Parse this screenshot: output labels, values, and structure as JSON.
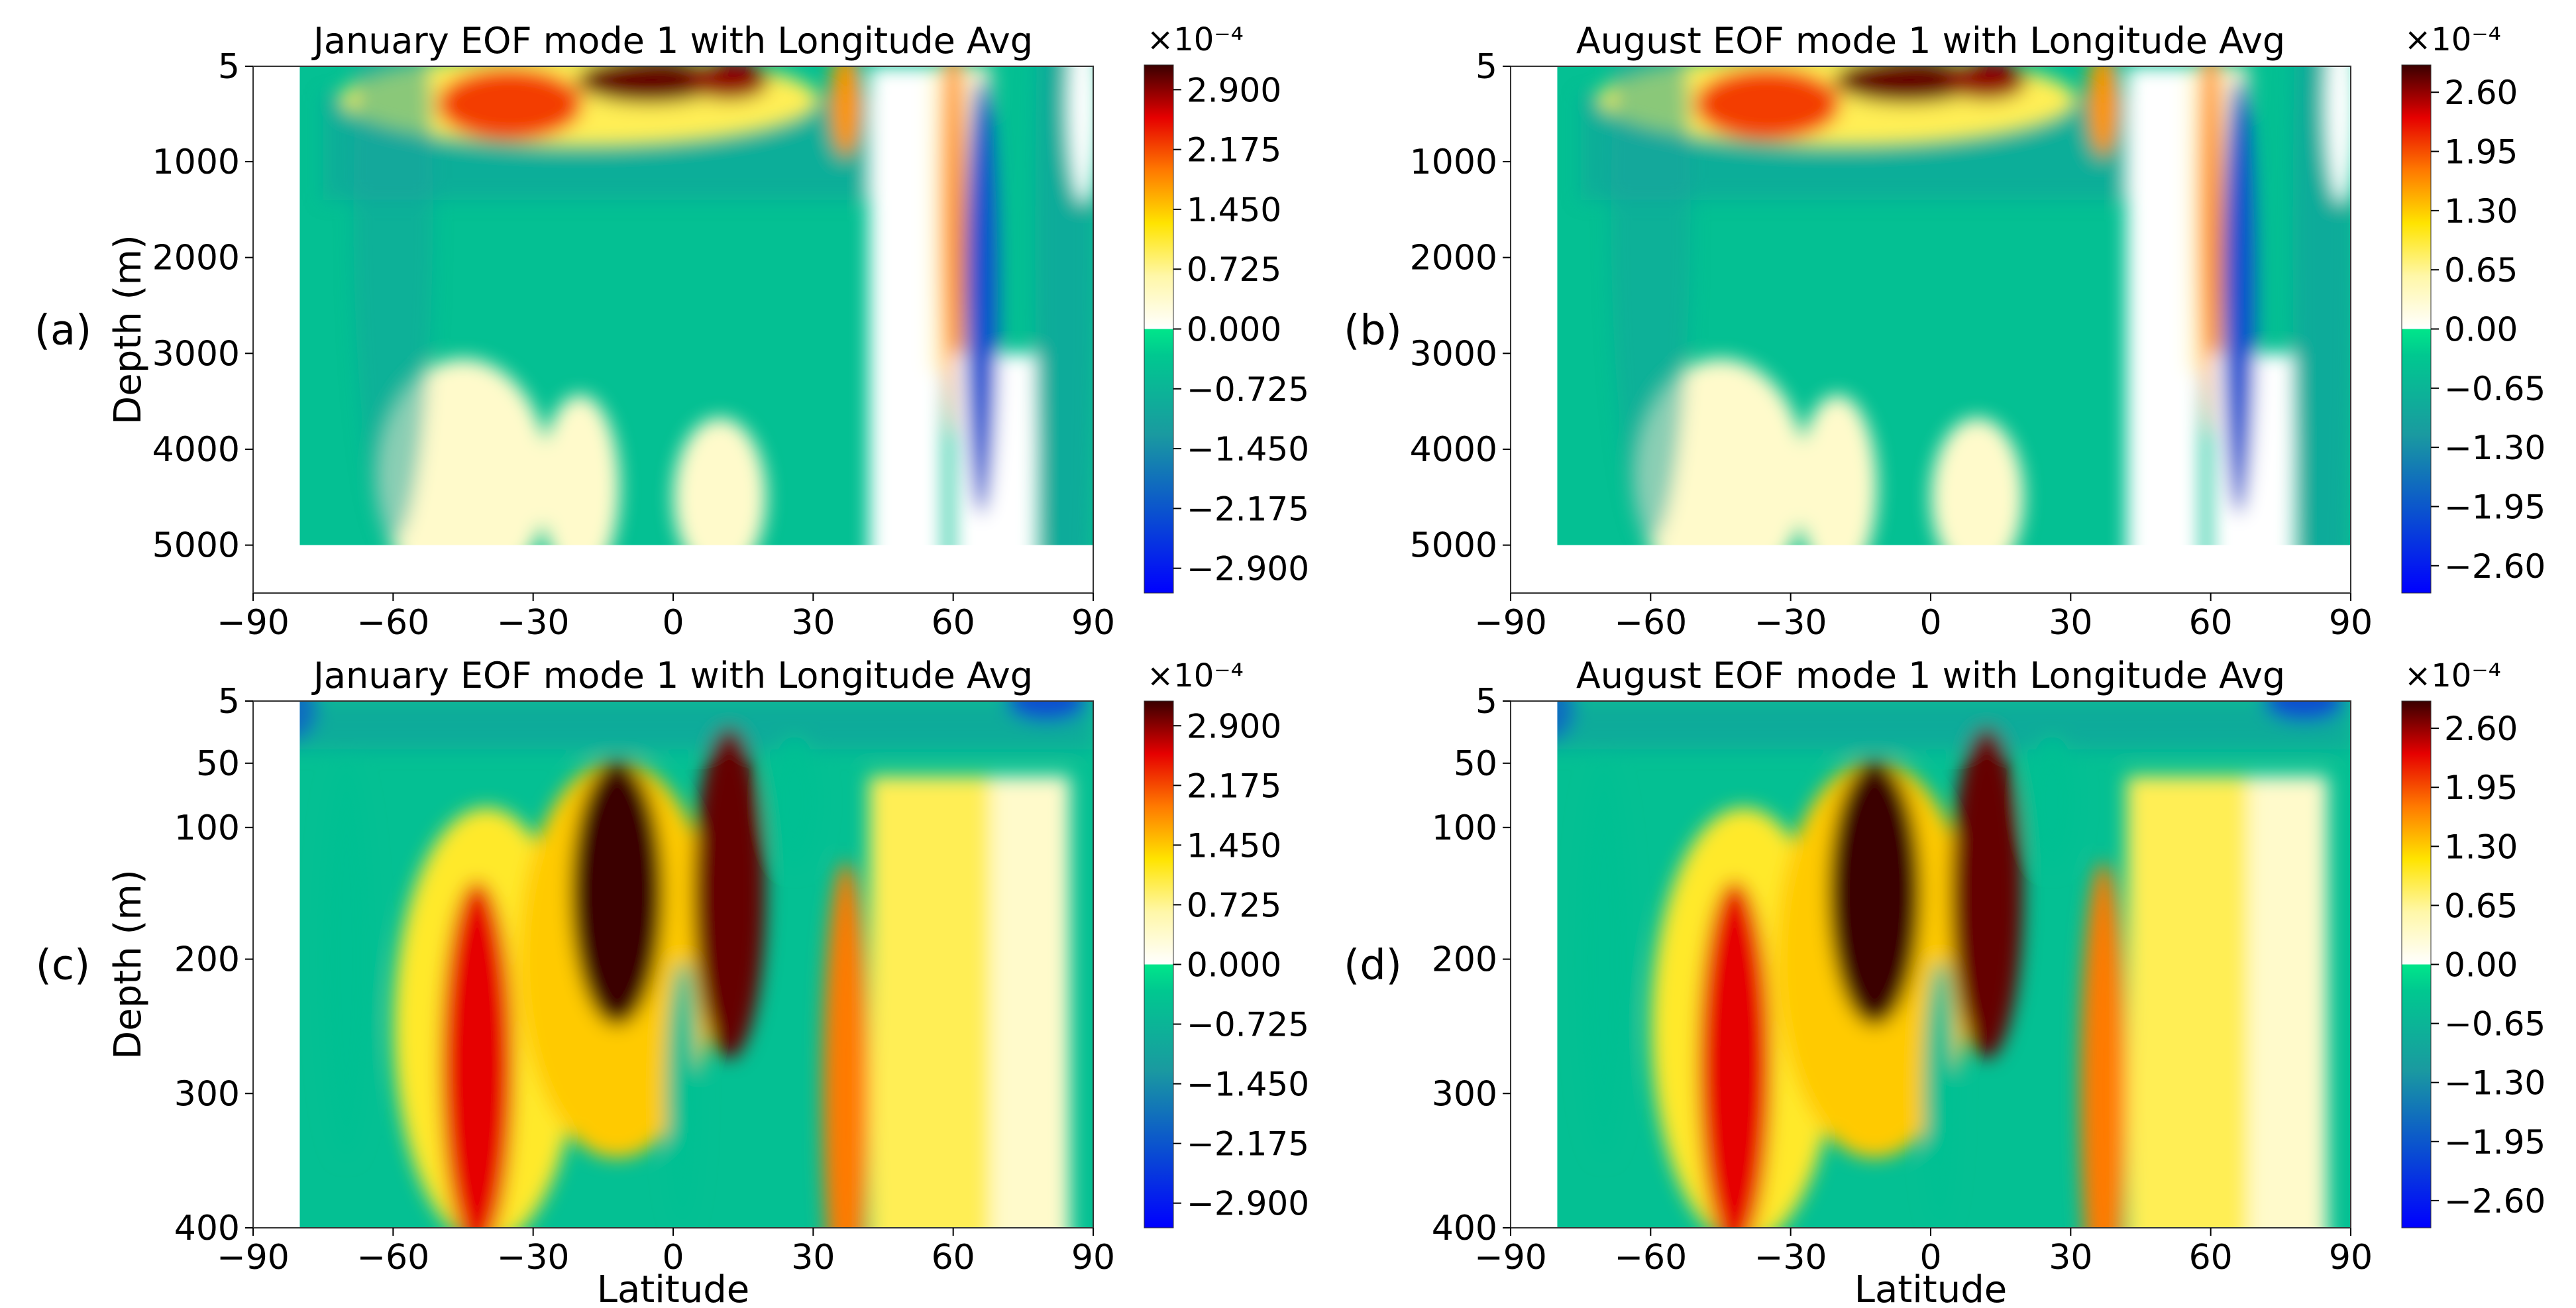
{
  "figure": {
    "panels": [
      {
        "id": "a",
        "panel_label": "(a)",
        "title": "January EOF mode 1 with Longitude Avg",
        "ylabel": "Depth (m)",
        "xlabel": "",
        "x_ticks": [
          -90,
          -60,
          -30,
          0,
          30,
          60,
          90
        ],
        "x_tick_labels": [
          "−90",
          "−60",
          "−30",
          "0",
          "30",
          "60",
          "90"
        ],
        "y_ticks": [
          5,
          1000,
          2000,
          3000,
          4000,
          5000
        ],
        "y_tick_labels": [
          "5",
          "1000",
          "2000",
          "3000",
          "4000",
          "5000"
        ],
        "colorbar": {
          "exponent_label": "×10⁻⁴",
          "tick_labels": [
            "2.900",
            "2.175",
            "1.450",
            "0.725",
            "0.000",
            "−0.725",
            "−1.450",
            "−2.175",
            "−2.900"
          ]
        }
      },
      {
        "id": "b",
        "panel_label": "(b)",
        "title": "August EOF mode 1 with Longitude Avg",
        "ylabel": "",
        "xlabel": "",
        "x_ticks": [
          -90,
          -60,
          -30,
          0,
          30,
          60,
          90
        ],
        "x_tick_labels": [
          "−90",
          "−60",
          "−30",
          "0",
          "30",
          "60",
          "90"
        ],
        "y_ticks": [
          5,
          1000,
          2000,
          3000,
          4000,
          5000
        ],
        "y_tick_labels": [
          "5",
          "1000",
          "2000",
          "3000",
          "4000",
          "5000"
        ],
        "colorbar": {
          "exponent_label": "×10⁻⁴",
          "tick_labels": [
            "2.60",
            "1.95",
            "1.30",
            "0.65",
            "0.00",
            "−0.65",
            "−1.30",
            "−1.95",
            "−2.60"
          ]
        }
      },
      {
        "id": "c",
        "panel_label": "(c)",
        "title": "January EOF mode 1 with Longitude Avg",
        "ylabel": "Depth (m)",
        "xlabel": "Latitude",
        "x_ticks": [
          -90,
          -60,
          -30,
          0,
          30,
          60,
          90
        ],
        "x_tick_labels": [
          "−90",
          "−60",
          "−30",
          "0",
          "30",
          "60",
          "90"
        ],
        "y_ticks": [
          5,
          50,
          100,
          200,
          300,
          400
        ],
        "y_tick_labels": [
          "5",
          "50",
          "100",
          "200",
          "300",
          "400"
        ],
        "colorbar": {
          "exponent_label": "×10⁻⁴",
          "tick_labels": [
            "2.900",
            "2.175",
            "1.450",
            "0.725",
            "0.000",
            "−0.725",
            "−1.450",
            "−2.175",
            "−2.900"
          ]
        }
      },
      {
        "id": "d",
        "panel_label": "(d)",
        "title": "August EOF mode 1 with Longitude Avg",
        "ylabel": "",
        "xlabel": "Latitude",
        "x_ticks": [
          -90,
          -60,
          -30,
          0,
          30,
          60,
          90
        ],
        "x_tick_labels": [
          "−90",
          "−60",
          "−30",
          "0",
          "30",
          "60",
          "90"
        ],
        "y_ticks": [
          5,
          50,
          100,
          200,
          300,
          400
        ],
        "y_tick_labels": [
          "5",
          "50",
          "100",
          "200",
          "300",
          "400"
        ],
        "colorbar": {
          "exponent_label": "×10⁻⁴",
          "tick_labels": [
            "2.60",
            "1.95",
            "1.30",
            "0.65",
            "0.00",
            "−0.65",
            "−1.30",
            "−1.95",
            "−2.60"
          ]
        }
      }
    ]
  },
  "chart_data": [
    {
      "type": "heatmap",
      "title": "January EOF mode 1 with Longitude Avg",
      "xlabel": "",
      "ylabel": "Depth (m)",
      "x_ticks": [
        -90,
        -60,
        -30,
        0,
        30,
        60,
        90
      ],
      "y_ticks": [
        5,
        1000,
        2000,
        3000,
        4000,
        5000
      ],
      "xlim": [
        -90,
        90
      ],
      "ylim": [
        5500,
        5
      ],
      "colorbar_ticks": [
        2.9,
        2.175,
        1.45,
        0.725,
        0.0,
        -0.725,
        -1.45,
        -2.175,
        -2.9
      ],
      "colorbar_scale": "1e-4",
      "vmin": -3.2,
      "vmax": 3.2,
      "features": [
        {
          "lat": -30,
          "depth": 500,
          "value": 2.9
        },
        {
          "lat": 0,
          "depth": 100,
          "value": 3.2
        },
        {
          "lat": 62,
          "depth": 2000,
          "value": 1.5
        },
        {
          "lat": -45,
          "depth": 4500,
          "value": 0.2
        },
        {
          "lat": 65,
          "depth": 2500,
          "value": -2.5
        }
      ]
    },
    {
      "type": "heatmap",
      "title": "August EOF mode 1 with Longitude Avg",
      "xlabel": "",
      "ylabel": "",
      "x_ticks": [
        -90,
        -60,
        -30,
        0,
        30,
        60,
        90
      ],
      "y_ticks": [
        5,
        1000,
        2000,
        3000,
        4000,
        5000
      ],
      "xlim": [
        -90,
        90
      ],
      "ylim": [
        5500,
        5
      ],
      "colorbar_ticks": [
        2.6,
        1.95,
        1.3,
        0.65,
        0.0,
        -0.65,
        -1.3,
        -1.95,
        -2.6
      ],
      "colorbar_scale": "1e-4",
      "vmin": -2.9,
      "vmax": 2.9,
      "features": [
        {
          "lat": -30,
          "depth": 500,
          "value": 2.6
        },
        {
          "lat": 0,
          "depth": 100,
          "value": 2.9
        },
        {
          "lat": 62,
          "depth": 2000,
          "value": 1.3
        },
        {
          "lat": -45,
          "depth": 4500,
          "value": 0.2
        },
        {
          "lat": 65,
          "depth": 2500,
          "value": -2.3
        }
      ]
    },
    {
      "type": "heatmap",
      "title": "January EOF mode 1 with Longitude Avg",
      "xlabel": "Latitude",
      "ylabel": "Depth (m)",
      "x_ticks": [
        -90,
        -60,
        -30,
        0,
        30,
        60,
        90
      ],
      "y_ticks": [
        5,
        50,
        100,
        200,
        300,
        400
      ],
      "xlim": [
        -90,
        90
      ],
      "ylim": [
        400,
        5
      ],
      "colorbar_ticks": [
        2.9,
        2.175,
        1.45,
        0.725,
        0.0,
        -0.725,
        -1.45,
        -2.175,
        -2.9
      ],
      "colorbar_scale": "1e-4",
      "vmin": -3.2,
      "vmax": 3.2,
      "features": [
        {
          "lat": -42,
          "depth": 250,
          "value": 2.6
        },
        {
          "lat": -12,
          "depth": 130,
          "value": 3.2
        },
        {
          "lat": 12,
          "depth": 110,
          "value": 3.2
        },
        {
          "lat": 37,
          "depth": 300,
          "value": 2.0
        },
        {
          "lat": 60,
          "depth": 200,
          "value": 0.9
        },
        {
          "lat": -80,
          "depth": 5,
          "value": -1.5
        }
      ]
    },
    {
      "type": "heatmap",
      "title": "August EOF mode 1 with Longitude Avg",
      "xlabel": "Latitude",
      "ylabel": "",
      "x_ticks": [
        -90,
        -60,
        -30,
        0,
        30,
        60,
        90
      ],
      "y_ticks": [
        5,
        50,
        100,
        200,
        300,
        400
      ],
      "xlim": [
        -90,
        90
      ],
      "ylim": [
        400,
        5
      ],
      "colorbar_ticks": [
        2.6,
        1.95,
        1.3,
        0.65,
        0.0,
        -0.65,
        -1.3,
        -1.95,
        -2.6
      ],
      "colorbar_scale": "1e-4",
      "vmin": -2.9,
      "vmax": 2.9,
      "features": [
        {
          "lat": -40,
          "depth": 250,
          "value": 2.3
        },
        {
          "lat": -10,
          "depth": 150,
          "value": 2.9
        },
        {
          "lat": 10,
          "depth": 150,
          "value": 2.9
        },
        {
          "lat": 37,
          "depth": 320,
          "value": 1.9
        },
        {
          "lat": 60,
          "depth": 200,
          "value": 0.8
        },
        {
          "lat": 75,
          "depth": 5,
          "value": -2.0
        }
      ]
    }
  ]
}
